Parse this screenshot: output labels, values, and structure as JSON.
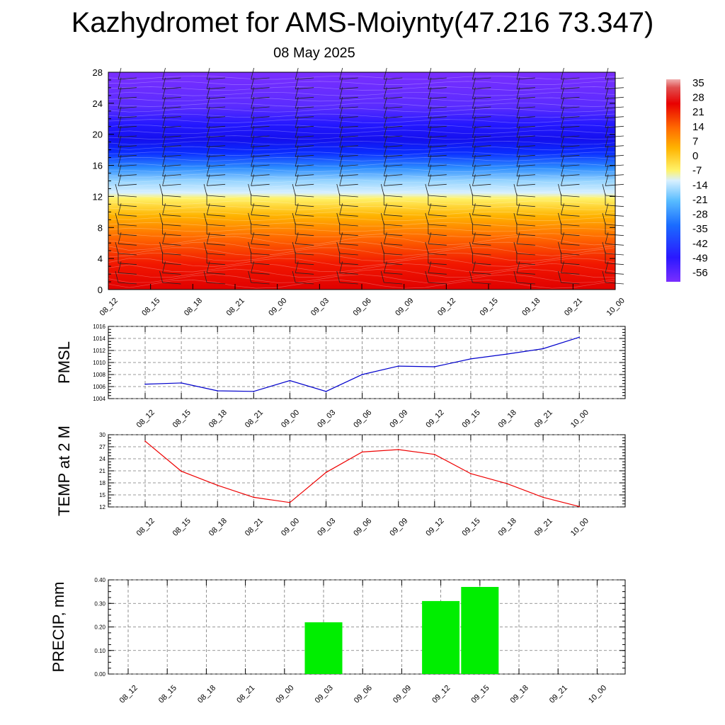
{
  "header": {
    "title": "Kazhydromet for AMS-Moiynty(47.216 73.347)",
    "subtitle": "08 May 2025"
  },
  "chart_data": [
    {
      "type": "heatmap",
      "title": "",
      "x_categories": [
        "08_12",
        "08_15",
        "08_18",
        "08_21",
        "09_00",
        "09_03",
        "09_06",
        "09_09",
        "09_12",
        "09_15",
        "09_18",
        "09_21",
        "10_00"
      ],
      "y_ticks": [
        "0",
        "4",
        "8",
        "12",
        "16",
        "20",
        "24",
        "28"
      ],
      "ylim": [
        0,
        28
      ],
      "colorbar_labels": [
        "35",
        "28",
        "21",
        "14",
        "7",
        "0",
        "-7",
        "-14",
        "-21",
        "-28",
        "-35",
        "-42",
        "-49",
        "-56"
      ],
      "colors": {
        "hot": "#e80000",
        "warm": "#ff8c00",
        "yellow": "#fff060",
        "cold_light": "#b8e4ff",
        "cold": "#3c9cff",
        "blue": "#0a18ff",
        "violet": "#7a2eff"
      }
    },
    {
      "type": "line",
      "ylabel": "PMSL",
      "categories": [
        "08_12",
        "08_15",
        "08_18",
        "08_21",
        "09_00",
        "09_03",
        "09_06",
        "09_09",
        "09_12",
        "09_15",
        "09_18",
        "09_21",
        "10_00"
      ],
      "values": [
        1006.4,
        1006.6,
        1005.3,
        1005.2,
        1007.0,
        1005.2,
        1008.0,
        1009.4,
        1009.3,
        1010.6,
        1011.4,
        1012.3,
        1014.2
      ],
      "y_ticks": [
        "1004",
        "1006",
        "1008",
        "1010",
        "1012",
        "1014",
        "1016"
      ],
      "ylim": [
        1004,
        1016
      ],
      "color": "#0000cc"
    },
    {
      "type": "line",
      "ylabel": "TEMP at 2 M",
      "categories": [
        "08_12",
        "08_15",
        "08_18",
        "08_21",
        "09_00",
        "09_03",
        "09_06",
        "09_09",
        "09_12",
        "09_15",
        "09_18",
        "09_21",
        "10_00"
      ],
      "values": [
        28.4,
        20.9,
        17.4,
        14.4,
        13.1,
        20.6,
        25.7,
        26.3,
        25.1,
        20.3,
        17.8,
        14.4,
        12.1
      ],
      "y_ticks": [
        "12",
        "15",
        "18",
        "21",
        "24",
        "27",
        "30"
      ],
      "ylim": [
        12,
        30
      ],
      "color": "#ee0000"
    },
    {
      "type": "bar",
      "ylabel": "PRECIP, mm",
      "categories": [
        "08_12",
        "08_15",
        "08_18",
        "08_21",
        "09_00",
        "09_03",
        "09_06",
        "09_09",
        "09_12",
        "09_15",
        "09_18",
        "09_21",
        "10_00"
      ],
      "values": [
        0,
        0,
        0,
        0,
        0,
        0.22,
        0,
        0,
        0.31,
        0.37,
        0,
        0,
        0
      ],
      "y_ticks": [
        "0.00",
        "0.10",
        "0.20",
        "0.30",
        "0.40"
      ],
      "ylim": [
        0,
        0.4
      ],
      "color": "#00ee00"
    }
  ]
}
